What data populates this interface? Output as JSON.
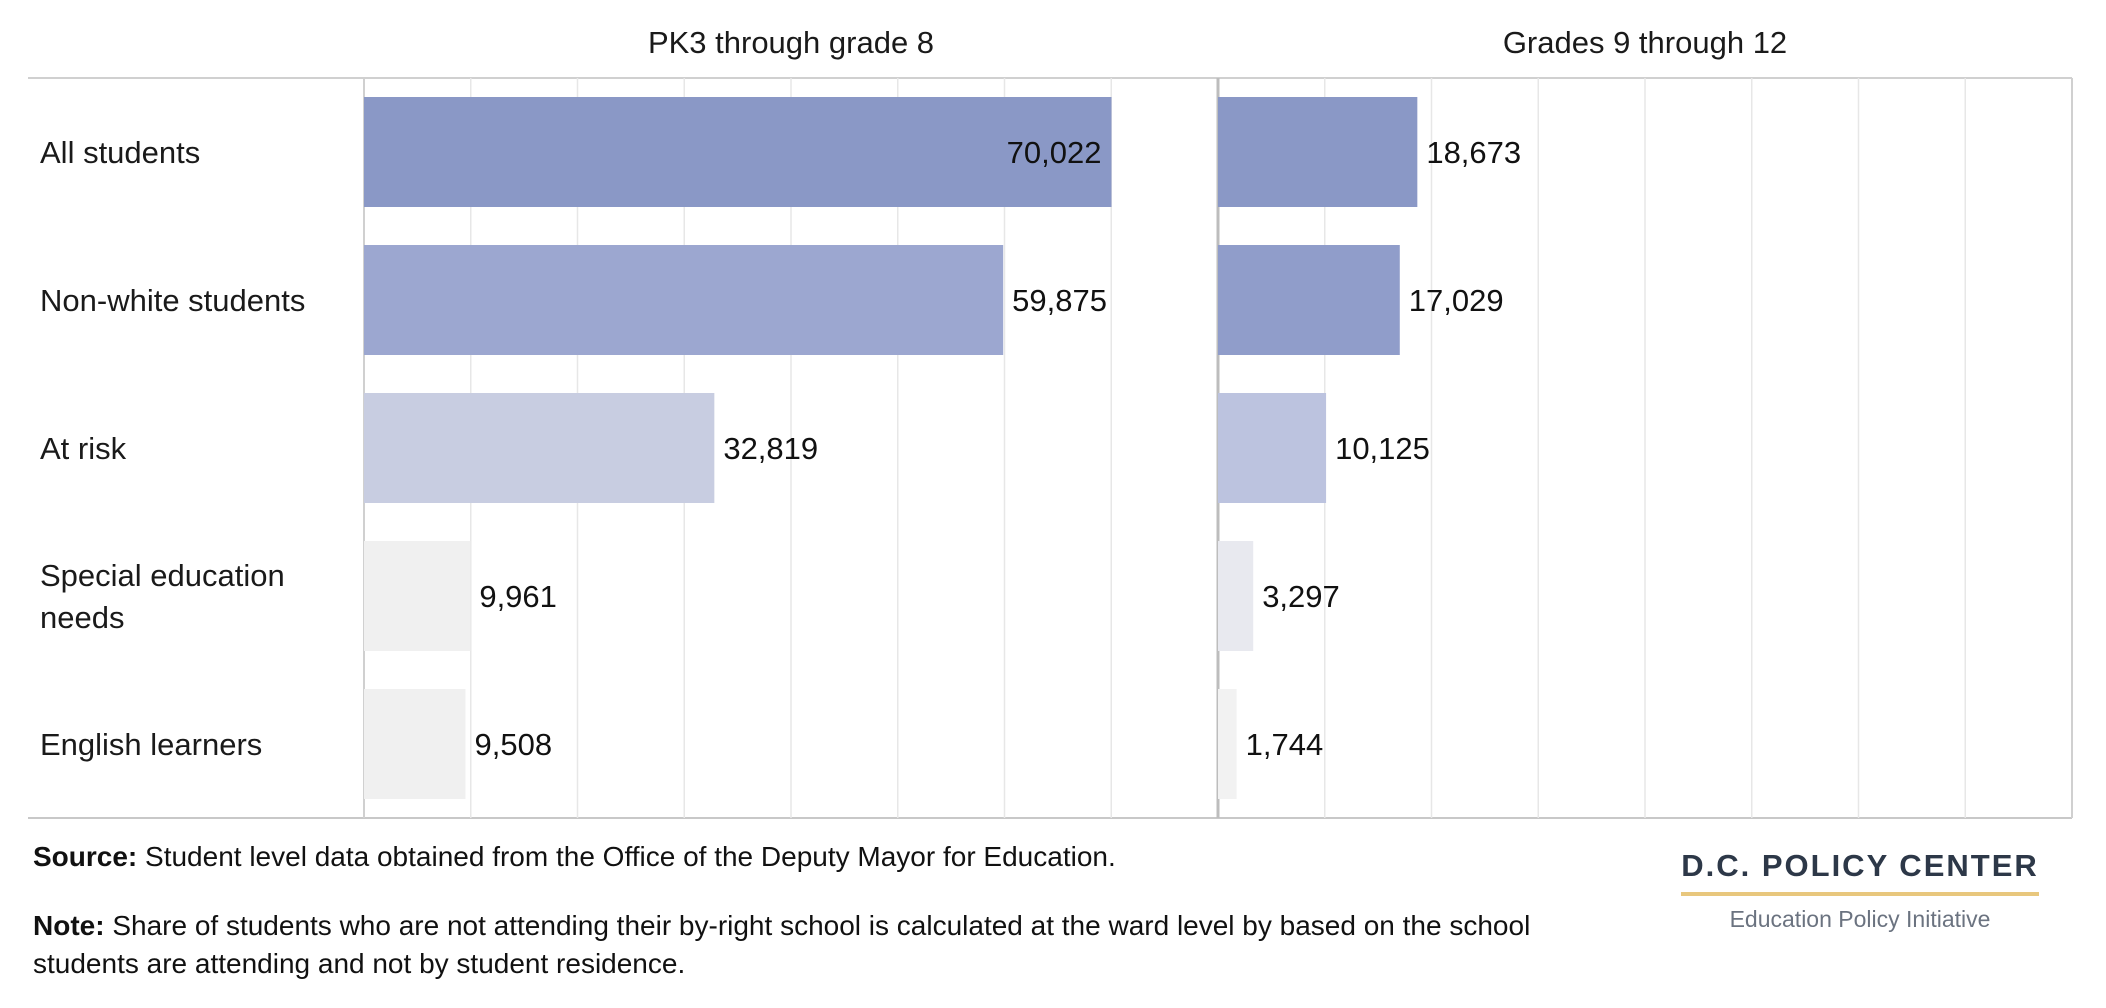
{
  "chart_data": [
    {
      "type": "bar",
      "orientation": "horizontal",
      "title": "PK3 through grade 8",
      "categories": [
        "All students",
        "Non-white students",
        "At risk",
        "Special education needs",
        "English learners"
      ],
      "values": [
        70022,
        59875,
        32819,
        9961,
        9508
      ],
      "value_labels": [
        "70,022",
        "59,875",
        "32,819",
        "9,961",
        "9,508"
      ],
      "bar_colors": [
        "#8a98c6",
        "#9ca7d0",
        "#c8cde1",
        "#f0f0f0",
        "#f0f0f0"
      ],
      "xlim": [
        0,
        80000
      ],
      "grid": true
    },
    {
      "type": "bar",
      "orientation": "horizontal",
      "title": "Grades 9 through 12",
      "categories": [
        "All students",
        "Non-white students",
        "At risk",
        "Special education needs",
        "English learners"
      ],
      "values": [
        18673,
        17029,
        10125,
        3297,
        1744
      ],
      "value_labels": [
        "18,673",
        "17,029",
        "10,125",
        "3,297",
        "1,744"
      ],
      "bar_colors": [
        "#8a98c6",
        "#909dca",
        "#bcc3df",
        "#e8e9ef",
        "#f2f2f2"
      ],
      "xlim": [
        0,
        80000
      ],
      "grid": true
    }
  ],
  "row_labels": [
    [
      "All students"
    ],
    [
      "Non-white students"
    ],
    [
      "At risk"
    ],
    [
      "Special education",
      "needs"
    ],
    [
      "English learners"
    ]
  ],
  "footer": {
    "source_label": "Source:",
    "source_text": "Student level data obtained from the Office of the Deputy Mayor for Education.",
    "note_label": "Note:",
    "note_text": "Share of students who are not attending their by-right school is calculated at the ward level by based on the school students are attending and not by student residence."
  },
  "brand": {
    "name": "D.C. POLICY CENTER",
    "subtitle": "Education Policy Initiative",
    "accent_color": "#e8c77d"
  }
}
